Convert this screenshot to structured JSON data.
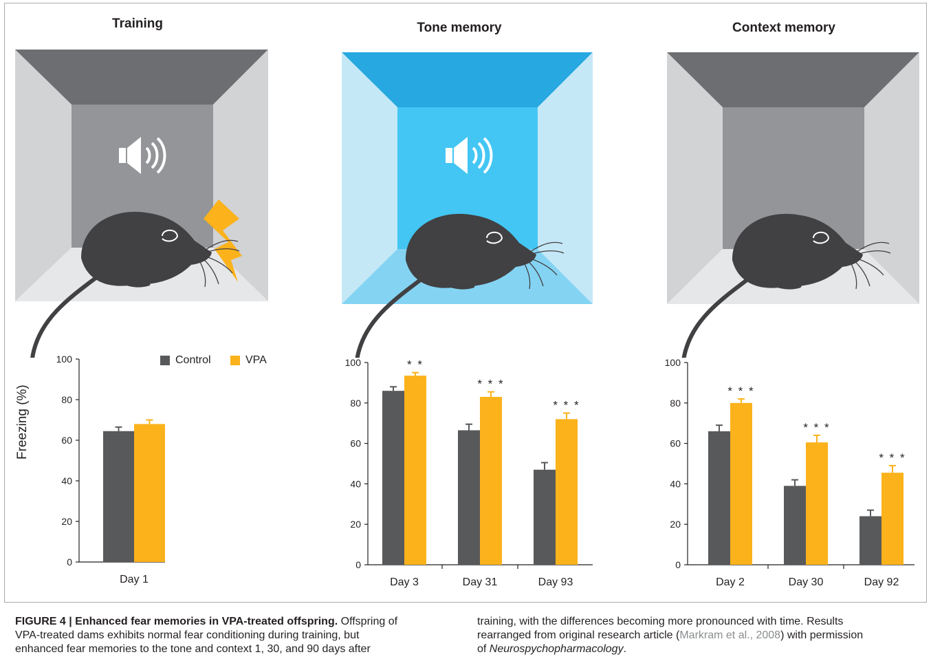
{
  "figure": {
    "panels": [
      {
        "title": "Training"
      },
      {
        "title": "Tone memory"
      },
      {
        "title": "Context memory"
      }
    ],
    "colors": {
      "control": "#58595b",
      "vpa": "#fbb21b",
      "gray_chamber_back": "#939598",
      "blue_chamber_back": "#43c6f3",
      "shock": "#fbb21b",
      "mouse": "#414042"
    },
    "icons": [
      "speaker-icon",
      "lightning-bolt-icon",
      "mouse-illustration"
    ],
    "legend": {
      "control": "Control",
      "vpa": "VPA"
    },
    "ylabel": "Freezing (%)"
  },
  "chart_data": [
    {
      "type": "bar",
      "panel": "Training",
      "categories": [
        "Day 1"
      ],
      "series": [
        {
          "name": "Control",
          "values": [
            64.5
          ],
          "errors": [
            2.0
          ]
        },
        {
          "name": "VPA",
          "values": [
            68.0
          ],
          "errors": [
            2.0
          ]
        }
      ],
      "significance": [
        ""
      ],
      "ylabel": "Freezing (%)",
      "yticks": [
        "0",
        "20",
        "40",
        "60",
        "80",
        "100"
      ],
      "ylim": [
        0,
        100
      ],
      "legend": "top-right"
    },
    {
      "type": "bar",
      "panel": "Tone memory",
      "categories": [
        "Day 3",
        "Day 31",
        "Day 93"
      ],
      "series": [
        {
          "name": "Control",
          "values": [
            86,
            66.5,
            47
          ],
          "errors": [
            2.0,
            3.0,
            3.5
          ]
        },
        {
          "name": "VPA",
          "values": [
            93.5,
            83,
            72
          ],
          "errors": [
            1.5,
            2.5,
            3.0
          ]
        }
      ],
      "significance": [
        "**",
        "***",
        "***"
      ],
      "yticks": [
        "0",
        "20",
        "40",
        "60",
        "80",
        "100"
      ],
      "ylim": [
        0,
        100
      ]
    },
    {
      "type": "bar",
      "panel": "Context memory",
      "categories": [
        "Day 2",
        "Day 30",
        "Day 92"
      ],
      "series": [
        {
          "name": "Control",
          "values": [
            66,
            39,
            24
          ],
          "errors": [
            3.0,
            3.0,
            3.0
          ]
        },
        {
          "name": "VPA",
          "values": [
            80,
            60.5,
            45.5
          ],
          "errors": [
            2.0,
            3.5,
            3.5
          ]
        }
      ],
      "significance": [
        "***",
        "***",
        "***"
      ],
      "yticks": [
        "0",
        "20",
        "40",
        "60",
        "80",
        "100"
      ],
      "ylim": [
        0,
        100
      ]
    }
  ],
  "caption": {
    "label": "FIGURE 4 | Enhanced fear memories in VPA-treated offspring.",
    "line1_rest": " Offspring of",
    "line2": "VPA-treated dams exhibits normal fear conditioning during training, but",
    "line3": "enhanced fear memories to the tone and context 1, 30, and 90 days after",
    "col2_line1": "training, with the differences becoming more pronounced with time. Results",
    "col2_line2_pre": "rearranged from original research article (",
    "citation": "Markram et al., 2008",
    "col2_line2_post": ") with permission",
    "col2_line3_pre": "of ",
    "journal": "Neurospychopharmacology",
    "col2_line3_post": "."
  }
}
